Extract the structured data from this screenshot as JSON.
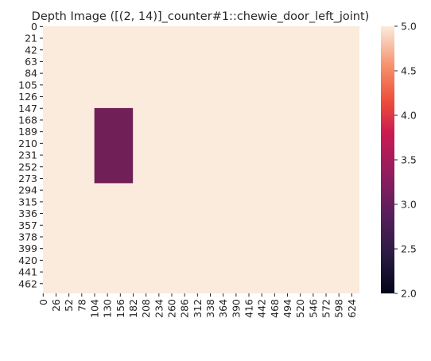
{
  "chart_data": {
    "type": "heatmap",
    "title": "Depth Image ([(2, 14)]_counter#1::chewie_door_left_joint)",
    "xlabel": "",
    "ylabel": "",
    "grid": false,
    "width": 640,
    "height": 480,
    "default_value": 5.0,
    "regions": [
      {
        "x_range": [
          104,
          182
        ],
        "y_range": [
          147,
          282
        ],
        "value": 2.8
      }
    ],
    "x_ticks": [
      "0",
      "26",
      "52",
      "78",
      "104",
      "130",
      "156",
      "182",
      "208",
      "234",
      "260",
      "286",
      "312",
      "338",
      "364",
      "390",
      "416",
      "442",
      "468",
      "494",
      "520",
      "546",
      "572",
      "598",
      "624"
    ],
    "y_ticks": [
      "0",
      "21",
      "42",
      "63",
      "84",
      "105",
      "126",
      "147",
      "168",
      "189",
      "210",
      "231",
      "252",
      "273",
      "294",
      "315",
      "336",
      "357",
      "378",
      "399",
      "420",
      "441",
      "462"
    ],
    "colorbar": {
      "vmin": 2.0,
      "vmax": 5.0,
      "ticks": [
        "2.0",
        "2.5",
        "3.0",
        "3.5",
        "4.0",
        "4.5",
        "5.0"
      ],
      "colormap": "rocket",
      "placement": "right"
    },
    "colors": {
      "background_value_color": "#FAEBDD",
      "region_value_color": "#701F57"
    }
  }
}
